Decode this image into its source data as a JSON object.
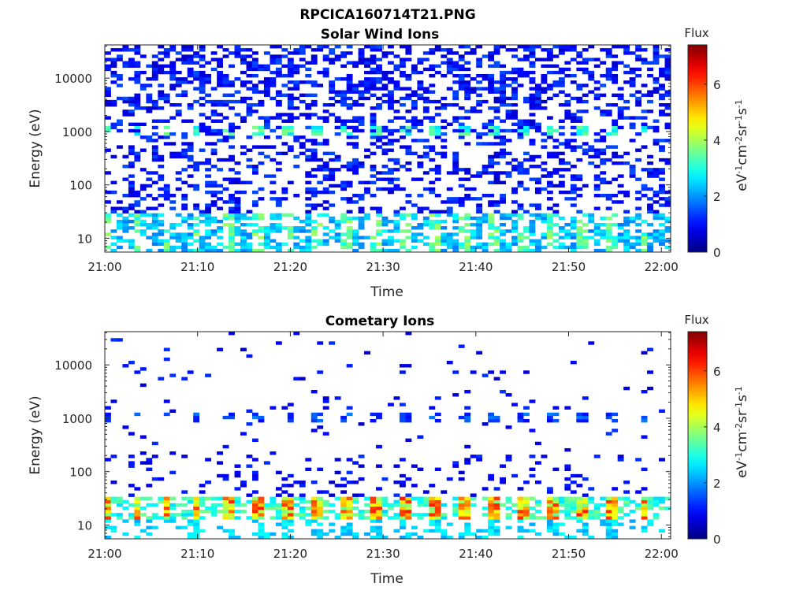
{
  "figure": {
    "title": "RPCICA160714T21.PNG"
  },
  "chart_data": [
    {
      "type": "heatmap",
      "title": "Solar Wind Ions",
      "xlabel": "Time",
      "ylabel": "Energy (eV)",
      "x_ticks": [
        "21:00",
        "21:10",
        "21:20",
        "21:30",
        "21:40",
        "21:50",
        "22:00"
      ],
      "x_range_minutes": [
        0,
        61
      ],
      "y_scale": "log",
      "y_ticks": [
        "10",
        "100",
        "1000",
        "10000"
      ],
      "y_range": [
        5.5,
        42000
      ],
      "colorbar": {
        "title": "Flux",
        "label": "eV-1cm-2sr-1s-1",
        "ticks": [
          "0",
          "2",
          "4",
          "6"
        ],
        "range": [
          0,
          7.4
        ],
        "colormap": "jet"
      },
      "grid": false,
      "features": [
        {
          "description_energy_eV": [
            6,
            30
          ],
          "typical_flux": 2.5,
          "pattern": "dense low-energy band with periodic peaks ~3.2 min"
        },
        {
          "description_energy_eV": [
            900,
            1300
          ],
          "typical_flux": 3.0,
          "pattern": "periodic spots every ~3.2 min"
        },
        {
          "description_energy_eV": [
            30,
            40000
          ],
          "typical_flux": 1.0,
          "pattern": "sparse background"
        }
      ]
    },
    {
      "type": "heatmap",
      "title": "Cometary Ions",
      "xlabel": "Time",
      "ylabel": "Energy (eV)",
      "x_ticks": [
        "21:00",
        "21:10",
        "21:20",
        "21:30",
        "21:40",
        "21:50",
        "22:00"
      ],
      "x_range_minutes": [
        0,
        61
      ],
      "y_scale": "log",
      "y_ticks": [
        "10",
        "100",
        "1000",
        "10000"
      ],
      "y_range": [
        5.5,
        42000
      ],
      "colorbar": {
        "title": "Flux",
        "label": "eV-1cm-2sr-1s-1",
        "ticks": [
          "0",
          "2",
          "4",
          "6"
        ],
        "range": [
          0,
          7.4
        ],
        "colormap": "jet"
      },
      "grid": false,
      "features": [
        {
          "description_energy_eV": [
            12,
            35
          ],
          "typical_flux": 4.5,
          "peak_flux": 6.0,
          "pattern": "bright band, peaks every ~3.2 min"
        },
        {
          "description_energy_eV": [
            900,
            1300
          ],
          "typical_flux": 1.2,
          "pattern": "periodic spots every ~3.2 min"
        },
        {
          "description_energy_eV": [
            40,
            40000
          ],
          "typical_flux": 1.0,
          "pattern": "very sparse"
        }
      ]
    }
  ]
}
